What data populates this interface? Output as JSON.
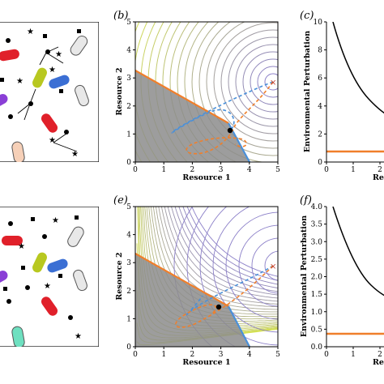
{
  "panels": {
    "b": {
      "label": "(b)",
      "xlabel": "Resource 1",
      "ylabel": "Resource 2",
      "xticks": [
        "0",
        "1",
        "2",
        "3",
        "4",
        "5"
      ],
      "yticks": [
        "0",
        "1",
        "2",
        "3",
        "4",
        "5"
      ]
    },
    "c": {
      "label": "(c)",
      "ylabel": "Environmental Perturbation",
      "xlabel_partial": "Re",
      "xticks": [
        "0",
        "1",
        "2"
      ],
      "yticks": [
        "0",
        "2",
        "4",
        "6",
        "8",
        "10"
      ]
    },
    "e": {
      "label": "(e)",
      "xlabel": "Resource 1",
      "ylabel": "Resource 2",
      "xticks": [
        "0",
        "1",
        "2",
        "3",
        "4",
        "5"
      ],
      "yticks": [
        "0",
        "1",
        "2",
        "3",
        "4",
        "5"
      ]
    },
    "f": {
      "label": "(f)",
      "ylabel": "Environmental Perturbation",
      "xlabel_partial": "Re",
      "xticks": [
        "0",
        "1",
        "2"
      ],
      "yticks": [
        "0.0",
        "0.5",
        "1.0",
        "1.5",
        "2.0",
        "2.5",
        "3.0",
        "3.5",
        "4.0"
      ]
    }
  },
  "colors": {
    "orange": "#f07f2b",
    "blue": "#4a90d9",
    "gray_region": "#8c8c8c",
    "black": "#000000",
    "contour_far": "#8b7fc8",
    "contour_near": "#d8e64a"
  }
}
